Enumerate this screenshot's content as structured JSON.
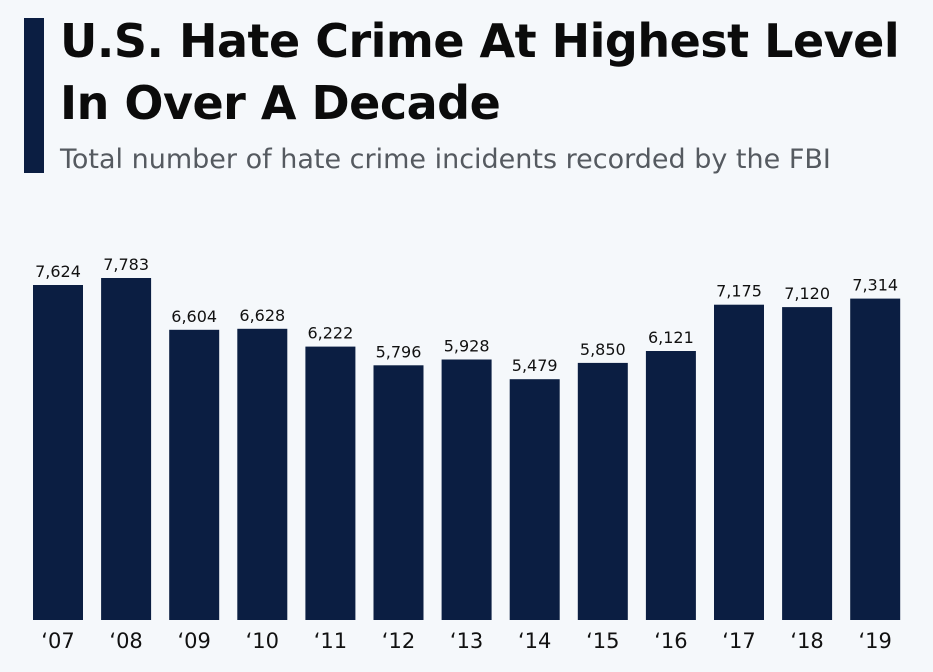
{
  "header": {
    "title": "U.S. Hate Crime At Highest Level In Over A Decade",
    "subtitle": "Total number of hate crime incidents recorded by the FBI"
  },
  "colors": {
    "bar": "#0b1e42",
    "accent": "#0b1e42",
    "background": "#f5f8fb"
  },
  "chart_data": {
    "type": "bar",
    "title": "U.S. Hate Crime At Highest Level In Over A Decade",
    "subtitle": "Total number of hate crime incidents recorded by the FBI",
    "categories": [
      "‘07",
      "‘08",
      "‘09",
      "‘10",
      "‘11",
      "‘12",
      "‘13",
      "‘14",
      "‘15",
      "‘16",
      "‘17",
      "‘18",
      "‘19"
    ],
    "values": [
      7624,
      7783,
      6604,
      6628,
      6222,
      5796,
      5928,
      5479,
      5850,
      6121,
      7175,
      7120,
      7314
    ],
    "value_labels": [
      "7,624",
      "7,783",
      "6,604",
      "6,628",
      "6,222",
      "5,796",
      "5,928",
      "5,479",
      "5,850",
      "6,121",
      "7,175",
      "7,120",
      "7,314"
    ],
    "xlabel": "",
    "ylabel": "",
    "ylim": [
      0,
      7783
    ],
    "grid": false,
    "legend": "none"
  }
}
